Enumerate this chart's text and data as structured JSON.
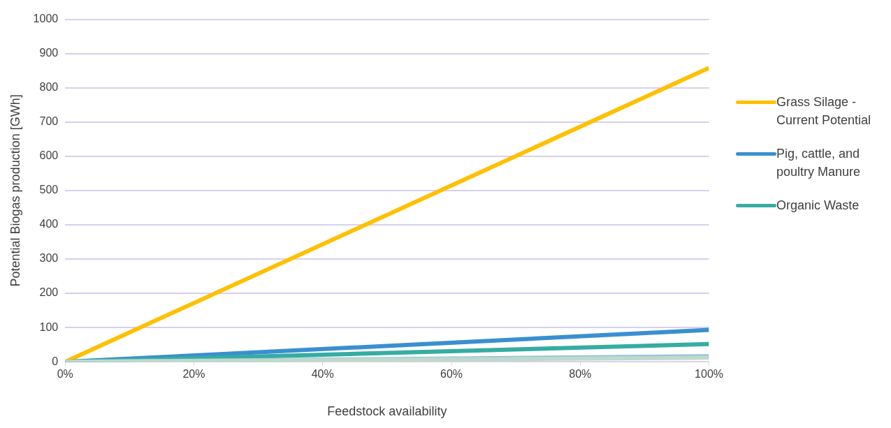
{
  "chart_data": {
    "type": "line",
    "xlabel": "Feedstock availability",
    "ylabel": "Potential Biogas production [GWh]",
    "x": [
      0,
      100
    ],
    "series": [
      {
        "name": "Grass Silage - Current Potential",
        "color": "#ffc000",
        "values": [
          0,
          858
        ]
      },
      {
        "name": "Pig, cattle, and poultry Manure",
        "color": "#3a8fd0",
        "values": [
          0,
          93
        ]
      },
      {
        "name": "Organic Waste",
        "color": "#36aca2",
        "values": [
          0,
          52
        ]
      },
      {
        "color": "#8fc1dd",
        "values": [
          0,
          16
        ]
      },
      {
        "color": "#bfd9cc",
        "values": [
          0,
          12
        ]
      }
    ],
    "xlim": [
      0,
      100
    ],
    "xticks": [
      {
        "value": 0,
        "label": "0%"
      },
      {
        "value": 20,
        "label": "20%"
      },
      {
        "value": 40,
        "label": "40%"
      },
      {
        "value": 60,
        "label": "60%"
      },
      {
        "value": 80,
        "label": "80%"
      },
      {
        "value": 100,
        "label": "100%"
      }
    ],
    "ylim": [
      0,
      1000
    ],
    "yticks": [
      0,
      100,
      200,
      300,
      400,
      500,
      600,
      700,
      800,
      900,
      1000
    ],
    "grid": "y",
    "legend": "right",
    "marker": "none",
    "line_style": "solid"
  }
}
